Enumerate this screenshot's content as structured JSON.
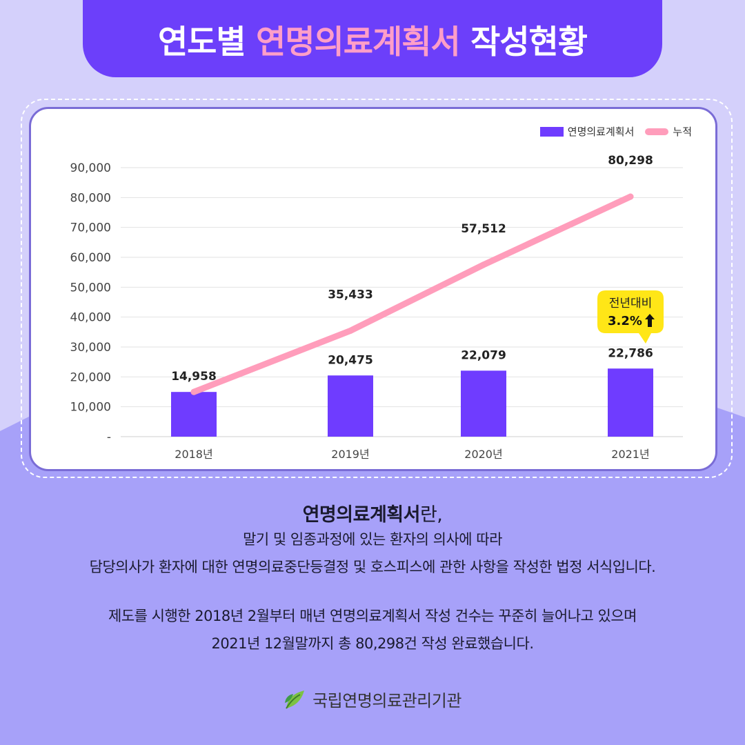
{
  "header": {
    "title_part1": "연도별 ",
    "title_accent": "연명의료계획서",
    "title_part2": " 작성현황"
  },
  "colors": {
    "background_light": "#d4d0fb",
    "background_lower": "#a7a1f9",
    "title_bg": "#6c3ffa",
    "title_accent": "#ff9ec8",
    "bar": "#6f3cff",
    "line": "#ff9dbb",
    "callout": "#ffe617"
  },
  "chart_data": {
    "type": "bar",
    "categories": [
      "2018년",
      "2019년",
      "2020년",
      "2021년"
    ],
    "series": [
      {
        "name": "연명의료계획서",
        "type": "bar",
        "values": [
          14958,
          20475,
          22079,
          22786
        ]
      },
      {
        "name": "누적",
        "type": "line",
        "values": [
          14958,
          35433,
          57512,
          80298
        ]
      }
    ],
    "y_ticks": [
      "-",
      "10,000",
      "20,000",
      "30,000",
      "40,000",
      "50,000",
      "60,000",
      "70,000",
      "80,000",
      "90,000"
    ],
    "bar_labels": [
      "14,958",
      "20,475",
      "22,079",
      "22,786"
    ],
    "line_labels": [
      "",
      "35,433",
      "57,512",
      "80,298"
    ],
    "ylim": [
      0,
      90000
    ],
    "grid": true,
    "legend_position": "top-right",
    "callout": {
      "line1": "전년대비",
      "line2": "3.2%",
      "icon": "up-arrow-icon",
      "category_index": 3
    }
  },
  "description": {
    "title_bold": "연명의료계획서",
    "title_rest": "란,",
    "line1": "말기 및 임종과정에 있는 환자의 의사에 따라",
    "line2": "담당의사가 환자에 대한 연명의료중단등결정 및 호스피스에 관한 사항을 작성한 법정 서식입니다.",
    "line3": "제도를 시행한 2018년 2월부터 매년 연명의료계획서 작성 건수는 꾸준히 늘어나고 있으며",
    "line4": "2021년 12월말까지 총 80,298건 작성 완료했습니다."
  },
  "footer": {
    "org_name": "국립연명의료관리기관",
    "logo_icon": "leaf-logo-icon"
  }
}
